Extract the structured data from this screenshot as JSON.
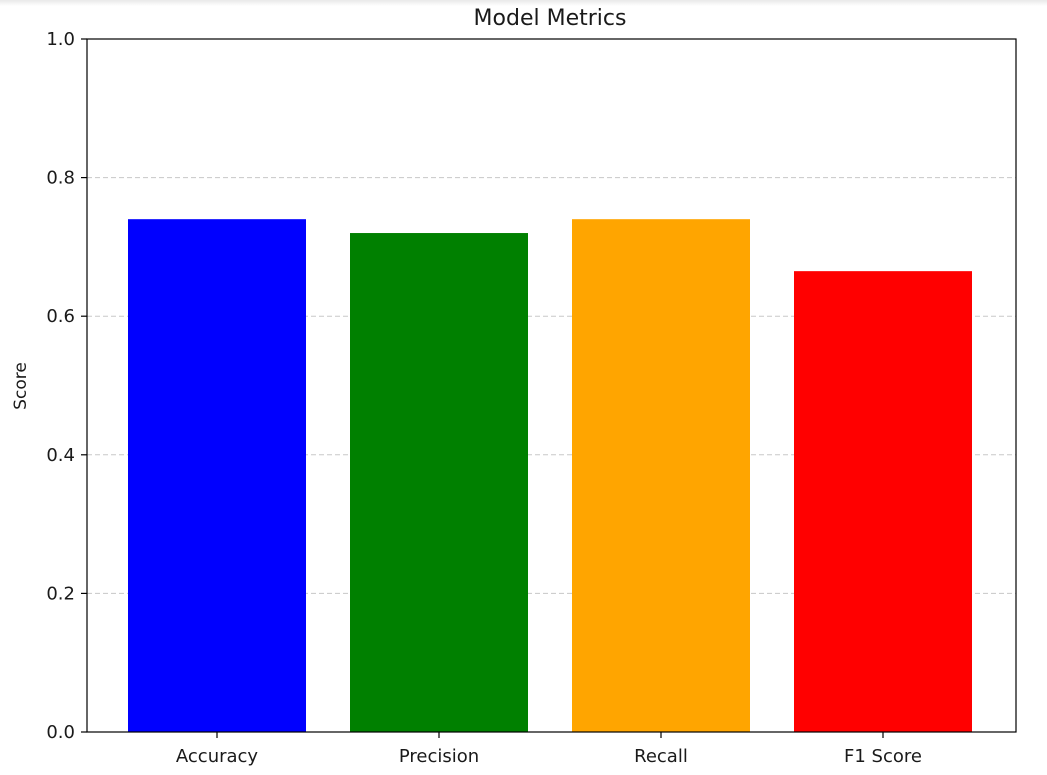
{
  "chart_data": {
    "type": "bar",
    "title": "Model Metrics",
    "xlabel": "",
    "ylabel": "Score",
    "categories": [
      "Accuracy",
      "Precision",
      "Recall",
      "F1 Score"
    ],
    "values": [
      0.74,
      0.72,
      0.74,
      0.665
    ],
    "colors": [
      "#0000ff",
      "#008000",
      "#ffa500",
      "#ff0000"
    ],
    "ylim": [
      0,
      1.0
    ],
    "yticks": [
      "0.0",
      "0.2",
      "0.4",
      "0.6",
      "0.8",
      "1.0"
    ],
    "grid": {
      "axis": "y",
      "style": "dashed",
      "color": "#c8c8c8"
    },
    "legend": "none"
  }
}
